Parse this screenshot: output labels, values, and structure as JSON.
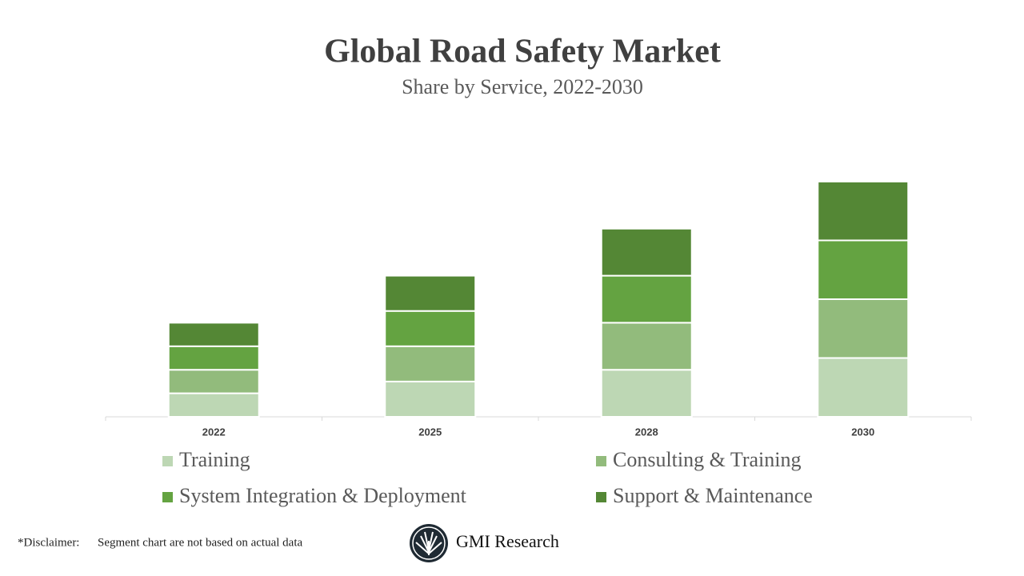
{
  "chart_data": {
    "type": "stacked_bar",
    "title": "Global Road Safety Market",
    "subtitle": "Share by Service, 2022-2030",
    "categories": [
      "2022",
      "2025",
      "2028",
      "2030"
    ],
    "series": [
      {
        "name": "Training",
        "color": "#bdd7b4",
        "values": [
          1,
          1.5,
          2,
          2.5
        ]
      },
      {
        "name": "Consulting & Training",
        "color": "#92bb7c",
        "values": [
          1,
          1.5,
          2,
          2.5
        ]
      },
      {
        "name": "System Integration & Deployment",
        "color": "#64a341",
        "values": [
          1,
          1.5,
          2,
          2.5
        ]
      },
      {
        "name": "Support & Maintenance",
        "color": "#548735",
        "values": [
          1,
          1.5,
          2,
          2.5
        ]
      }
    ],
    "ylim": [
      0,
      10
    ]
  },
  "footer": {
    "disclaimer_label": "*Disclaimer:",
    "disclaimer": "Segment chart are not based on actual data",
    "brand": "GMI Research"
  }
}
